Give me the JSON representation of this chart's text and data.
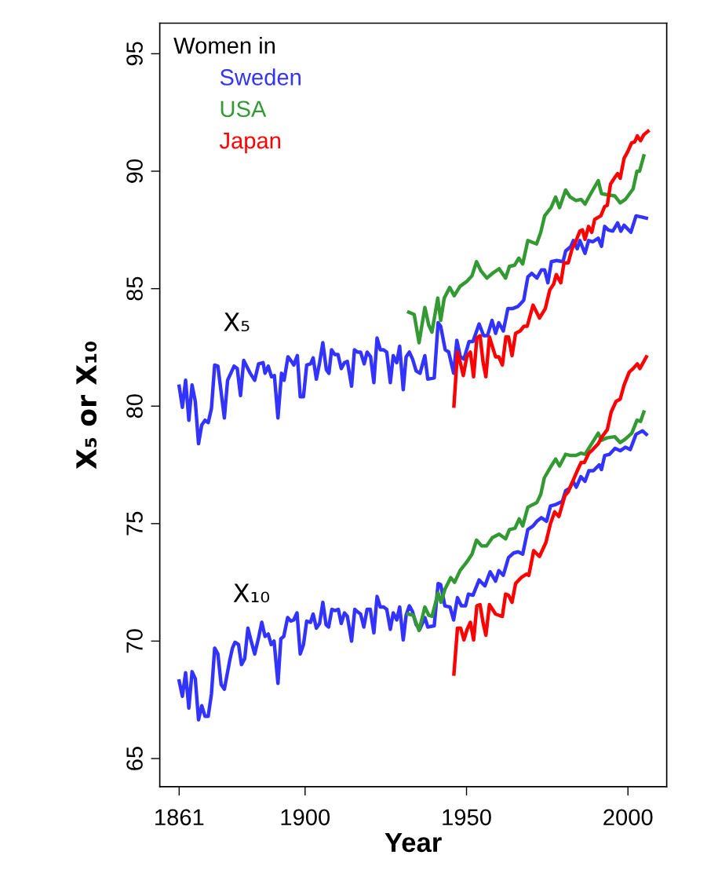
{
  "chart_data": {
    "type": "line",
    "xlabel": "Year",
    "ylabel": "X₅ or X₁₀",
    "legend_title": "Women in",
    "legend": "top left",
    "grid": false,
    "marker": "none",
    "line_style": "solid",
    "xlim": [
      1855,
      2012
    ],
    "ylim": [
      63.8,
      96.3
    ],
    "xticks": [
      1861,
      1900,
      1950,
      2000
    ],
    "yticks": [
      65,
      70,
      75,
      80,
      85,
      90,
      95
    ],
    "annotations": [
      "X₅",
      "X₁₀"
    ],
    "series": [
      {
        "name": "Sweden",
        "color": "#3333ff",
        "x": [
          1861,
          1862,
          1863,
          1864,
          1865,
          1866,
          1867,
          1868,
          1869,
          1870,
          1871,
          1872,
          1873,
          1874,
          1875,
          1876,
          1877,
          1878,
          1879,
          1880,
          1881,
          1883,
          1884.4,
          1885.6,
          1887,
          1887.6,
          1888.6,
          1889.6,
          1890.5,
          1891.6,
          1892.7,
          1893.5,
          1894.7,
          1895.8,
          1896.5,
          1897.6,
          1898.5,
          1899.5,
          1900.5,
          1901.7,
          1902.5,
          1903.5,
          1904.5,
          1905.5,
          1906.6,
          1907.4,
          1908.2,
          1909.2,
          1910.2,
          1911.2,
          1912.2,
          1913.1,
          1914.4,
          1915.3,
          1916.3,
          1917.2,
          1918.3,
          1919.2,
          1920.3,
          1921.3,
          1922.3,
          1923.3,
          1924.3,
          1925.3,
          1926.4,
          1927.3,
          1928.4,
          1929.3,
          1930.4,
          1931.3,
          1932.3,
          1933.3,
          1934.4,
          1935.6,
          1937.1,
          1938,
          1940,
          1941.2,
          1942,
          1943.4,
          1944.5,
          1946,
          1947,
          1948.1,
          1949.2,
          1950.8,
          1952,
          1953.9,
          1955.3,
          1956.5,
          1957.9,
          1959,
          1960,
          1961.4,
          1962.8,
          1964.2,
          1966,
          1967.7,
          1969,
          1970.2,
          1971.8,
          1973.2,
          1974.2,
          1975.2,
          1976.3,
          1977.9,
          1979.9,
          1980.7,
          1982.3,
          1983.1,
          1984.3,
          1985.1,
          1986.7,
          1987.8,
          1989.1,
          1990.8,
          1991.8,
          1992.8,
          1993.9,
          1995.3,
          1996.8,
          1997.8,
          1998.8,
          2000.9,
          2002.5,
          2004.2,
          2005.7
        ],
        "values": [
          80.85,
          79.95,
          81.1,
          79.4,
          80.9,
          80.2,
          78.4,
          79.2,
          79.4,
          79.3,
          79.9,
          81.75,
          81.7,
          80.6,
          79.5,
          81.1,
          81.4,
          81.7,
          81.6,
          80.45,
          81.95,
          81.4,
          81.1,
          81.8,
          81.85,
          81.4,
          81.7,
          81.25,
          81.3,
          79.5,
          81.4,
          81.1,
          82.1,
          81.9,
          81.75,
          82.15,
          80.4,
          80.4,
          81.75,
          81.8,
          82.05,
          81.15,
          81.85,
          82.7,
          81.55,
          81.4,
          82.4,
          82.2,
          82.2,
          81.6,
          81.85,
          81.9,
          80.85,
          82.4,
          82.3,
          82.3,
          81.8,
          82.3,
          82.1,
          81.0,
          82.9,
          82.4,
          82.4,
          82.3,
          81.0,
          82.15,
          81.85,
          82.55,
          80.7,
          82.1,
          82.3,
          82.0,
          81.5,
          81.4,
          82.15,
          81.15,
          81.2,
          83.55,
          83.4,
          82.4,
          82.3,
          81.4,
          82.8,
          82.1,
          82.0,
          82.75,
          82.75,
          83.5,
          83.0,
          83.0,
          83.65,
          83.1,
          83.55,
          83.2,
          84.15,
          84.15,
          84.25,
          84.5,
          85.5,
          85.65,
          85.45,
          85.8,
          85.8,
          85.25,
          86.15,
          86.2,
          86.15,
          86.6,
          86.8,
          87.05,
          86.7,
          87.05,
          86.5,
          87.05,
          87.0,
          87.15,
          86.8,
          87.65,
          87.5,
          87.45,
          87.8,
          87.45,
          87.7,
          87.4,
          88.1,
          88.05,
          88.0
        ]
      },
      {
        "name": "USA",
        "color": "#339933",
        "x": [
          1932.1,
          1933.8,
          1935.3,
          1937.1,
          1938.3,
          1939.3,
          1941.1,
          1942,
          1943.1,
          1944.8,
          1946.2,
          1948,
          1950,
          1951.7,
          1953.1,
          1954.5,
          1956.3,
          1958,
          1960.1,
          1962.1,
          1963.3,
          1964.9,
          1966.2,
          1967.4,
          1969,
          1971.7,
          1973,
          1974.2,
          1976.2,
          1977.6,
          1978.8,
          1980.7,
          1982.1,
          1983.9,
          1985.5,
          1986.7,
          1988.7,
          1990.8,
          1991.8,
          1993.5,
          1995.9,
          1997.6,
          1999.2,
          2001.6,
          2002.8,
          2003.6,
          2004.9
        ],
        "values": [
          84.0,
          83.9,
          82.7,
          84.2,
          83.45,
          83.15,
          84.6,
          83.65,
          84.6,
          85.05,
          84.7,
          85.1,
          85.3,
          85.55,
          86.15,
          85.75,
          85.45,
          85.65,
          85.85,
          85.45,
          85.95,
          86.0,
          86.3,
          86.05,
          87.05,
          86.9,
          87.4,
          88.1,
          88.45,
          88.9,
          88.45,
          89.2,
          88.9,
          88.75,
          88.8,
          88.6,
          89.1,
          89.6,
          89.05,
          89.0,
          88.95,
          88.65,
          88.8,
          89.25,
          90.0,
          90.0,
          90.65
        ]
      },
      {
        "name": "Japan",
        "color": "#ff0000",
        "x": [
          1946.1,
          1947.2,
          1948,
          1949,
          1950.1,
          1951.2,
          1952.2,
          1953.2,
          1954.2,
          1955.1,
          1956,
          1957.1,
          1959,
          1960,
          1961.1,
          1962.2,
          1963,
          1964.1,
          1965.2,
          1966.6,
          1967.8,
          1968.8,
          1970.6,
          1972.6,
          1974.4,
          1975.8,
          1977,
          1977.8,
          1979.2,
          1980.2,
          1981.5,
          1982.7,
          1983.8,
          1985.1,
          1985.9,
          1986.7,
          1987.8,
          1988.8,
          1989.7,
          1991.6,
          1992.8,
          1993.6,
          1994.6,
          1996,
          1996.8,
          1997.6,
          1998.8,
          2000,
          2001.1,
          2002.1,
          2002.9,
          2003.9,
          2004.9,
          2006.2
        ],
        "values": [
          80.0,
          82.3,
          81.9,
          81.3,
          82.1,
          82.3,
          81.25,
          82.9,
          83.0,
          81.9,
          81.25,
          82.95,
          82.1,
          82.1,
          81.75,
          82.95,
          82.95,
          82.15,
          83.1,
          83.2,
          83.4,
          83.4,
          84.3,
          83.75,
          84.15,
          84.95,
          85.2,
          85.6,
          85.25,
          86.1,
          86.1,
          86.7,
          87.0,
          87.45,
          87.5,
          87.1,
          87.65,
          87.4,
          87.95,
          88.1,
          88.5,
          88.55,
          89.45,
          89.75,
          89.9,
          89.7,
          90.55,
          90.85,
          91.2,
          91.25,
          91.5,
          91.3,
          91.55,
          91.7
        ]
      },
      {
        "color": "#3333ff",
        "x": [
          1861,
          1862,
          1863,
          1864,
          1865,
          1866,
          1867,
          1868,
          1869,
          1870,
          1871,
          1872,
          1873,
          1874,
          1875,
          1876.7,
          1877.5,
          1878.3,
          1879.4,
          1880.3,
          1881.3,
          1882.3,
          1883.3,
          1884.4,
          1885.6,
          1886.6,
          1887.6,
          1888.6,
          1889.5,
          1890.4,
          1891.6,
          1892.5,
          1893.4,
          1894.6,
          1895.6,
          1896.5,
          1897.5,
          1898.5,
          1899.5,
          1900.5,
          1901.7,
          1902.5,
          1903.5,
          1904.5,
          1905.5,
          1906.5,
          1907.3,
          1908.3,
          1909.3,
          1910.3,
          1911.2,
          1912.2,
          1913.1,
          1914.4,
          1915.4,
          1916.2,
          1917.2,
          1918.2,
          1919.2,
          1920.2,
          1921.3,
          1922.3,
          1923.3,
          1924.3,
          1925.3,
          1926.4,
          1927.3,
          1928.4,
          1929.3,
          1930.4,
          1931.3,
          1932.3,
          1933.3,
          1934.4,
          1935.5,
          1937.1,
          1938,
          1940,
          1941.2,
          1942,
          1943.3,
          1944.9,
          1946,
          1947.2,
          1948.4,
          1949.7,
          1950.6,
          1952,
          1953.9,
          1955.7,
          1957.3,
          1959,
          1960,
          1961.4,
          1963,
          1964.6,
          1966,
          1967.4,
          1969,
          1970.6,
          1971.8,
          1973.2,
          1974.8,
          1976,
          1977.4,
          1979.7,
          1980.7,
          1981.9,
          1983,
          1984,
          1985.4,
          1986.7,
          1987.9,
          1989.3,
          1991.1,
          1991.8,
          1992.8,
          1994.3,
          1996,
          1997.6,
          1999.2,
          2000.7,
          2002.5,
          2004.5,
          2005.7
        ],
        "values": [
          68.3,
          67.65,
          68.65,
          67.15,
          68.7,
          68.4,
          66.65,
          67.25,
          66.8,
          66.8,
          67.75,
          69.7,
          69.45,
          68.15,
          67.95,
          69.2,
          69.7,
          69.95,
          69.85,
          69.0,
          69.25,
          70.55,
          70.0,
          69.45,
          70.15,
          70.8,
          70.2,
          70.3,
          69.85,
          70.0,
          68.2,
          70.1,
          70.2,
          71.0,
          70.85,
          70.9,
          71.2,
          69.45,
          69.85,
          70.85,
          70.8,
          71.15,
          70.55,
          70.75,
          71.65,
          70.7,
          70.6,
          71.35,
          71.3,
          71.35,
          70.75,
          71.2,
          71.05,
          70.0,
          71.35,
          71.25,
          71.15,
          70.6,
          71.35,
          71.35,
          70.35,
          71.9,
          71.45,
          71.45,
          71.35,
          70.5,
          71.2,
          70.9,
          71.45,
          70.05,
          71.1,
          71.5,
          71.25,
          70.7,
          70.5,
          71.0,
          70.6,
          70.65,
          72.45,
          72.4,
          71.5,
          71.45,
          70.9,
          71.85,
          71.5,
          71.5,
          72.0,
          71.95,
          72.6,
          72.35,
          72.95,
          72.55,
          73.0,
          72.8,
          73.55,
          73.75,
          73.8,
          73.7,
          74.75,
          74.9,
          75.1,
          75.25,
          75.1,
          75.75,
          75.8,
          75.95,
          76.4,
          76.5,
          76.8,
          76.55,
          77.0,
          76.8,
          77.25,
          77.25,
          77.5,
          77.3,
          77.9,
          77.95,
          78.2,
          78.1,
          78.25,
          78.15,
          78.8,
          78.95,
          78.8
        ]
      },
      {
        "color": "#339933",
        "x": [
          1931.9,
          1933.5,
          1935.3,
          1937.1,
          1938.3,
          1939.3,
          1941.2,
          1942.1,
          1943.3,
          1945.1,
          1946.3,
          1948,
          1950,
          1951.7,
          1953.1,
          1954.7,
          1956.2,
          1958,
          1960.1,
          1962.1,
          1963.3,
          1965,
          1966.3,
          1967.4,
          1969,
          1971.8,
          1973,
          1974.1,
          1976,
          1977.6,
          1978.8,
          1980.7,
          1982.3,
          1983.9,
          1985.5,
          1986.7,
          1988.3,
          1990.8,
          1991.8,
          1993.5,
          1995.9,
          1997.6,
          1999.2,
          2001.2,
          2002.8,
          2003.9,
          2004.9
        ],
        "values": [
          71.15,
          71.1,
          70.45,
          71.45,
          71.1,
          71.05,
          72.05,
          71.65,
          72.2,
          72.7,
          72.5,
          73.0,
          73.35,
          73.7,
          74.3,
          74.05,
          74.05,
          74.4,
          74.55,
          74.35,
          74.75,
          74.8,
          75.2,
          74.9,
          75.7,
          75.9,
          76.25,
          76.95,
          77.4,
          77.75,
          77.45,
          77.95,
          77.9,
          77.9,
          78.0,
          77.95,
          78.3,
          78.85,
          78.55,
          78.65,
          78.7,
          78.45,
          78.6,
          78.85,
          79.4,
          79.35,
          79.75
        ]
      },
      {
        "color": "#ff0000",
        "x": [
          1946.1,
          1947.2,
          1948.2,
          1949.2,
          1950.2,
          1951.2,
          1952.2,
          1953.2,
          1954.2,
          1955.1,
          1956,
          1957.1,
          1959,
          1960,
          1961.1,
          1962.1,
          1963,
          1964.1,
          1965.2,
          1966.9,
          1968.6,
          1969.3,
          1970.8,
          1972.6,
          1974.6,
          1976,
          1977.3,
          1978.6,
          1980.5,
          1981.5,
          1982.9,
          1984.3,
          1985.5,
          1986.5,
          1987.9,
          1989.1,
          1990.8,
          1992,
          1993.6,
          1994.8,
          1996.3,
          1997.6,
          1998.8,
          2000.4,
          2001.6,
          2002.9,
          2003.7,
          2005.7
        ],
        "values": [
          68.6,
          70.55,
          70.55,
          70.05,
          70.5,
          70.8,
          70.05,
          71.5,
          71.55,
          70.8,
          70.25,
          71.55,
          71.15,
          71.1,
          71.05,
          72.0,
          71.95,
          71.65,
          72.45,
          72.7,
          72.85,
          72.8,
          73.85,
          73.6,
          74.2,
          75.0,
          75.5,
          75.3,
          76.2,
          76.35,
          76.8,
          77.25,
          77.6,
          77.6,
          78.0,
          78.15,
          78.4,
          78.7,
          79.0,
          79.75,
          80.2,
          80.3,
          80.9,
          81.45,
          81.6,
          81.8,
          81.6,
          82.1
        ]
      }
    ]
  }
}
